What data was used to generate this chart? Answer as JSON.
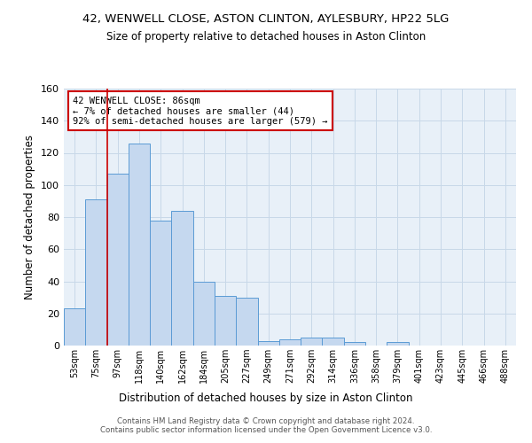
{
  "title_line1": "42, WENWELL CLOSE, ASTON CLINTON, AYLESBURY, HP22 5LG",
  "title_line2": "Size of property relative to detached houses in Aston Clinton",
  "xlabel": "Distribution of detached houses by size in Aston Clinton",
  "ylabel": "Number of detached properties",
  "bar_labels": [
    "53sqm",
    "75sqm",
    "97sqm",
    "118sqm",
    "140sqm",
    "162sqm",
    "184sqm",
    "205sqm",
    "227sqm",
    "249sqm",
    "271sqm",
    "292sqm",
    "314sqm",
    "336sqm",
    "358sqm",
    "379sqm",
    "401sqm",
    "423sqm",
    "445sqm",
    "466sqm",
    "488sqm"
  ],
  "bar_heights": [
    23,
    91,
    107,
    126,
    78,
    84,
    40,
    31,
    30,
    3,
    4,
    5,
    5,
    2,
    0,
    2,
    0,
    0,
    0,
    0,
    0
  ],
  "bar_color": "#c5d8ef",
  "bar_edge_color": "#5b9bd5",
  "annotation_text": "42 WENWELL CLOSE: 86sqm\n← 7% of detached houses are smaller (44)\n92% of semi-detached houses are larger (579) →",
  "annotation_box_color": "#ffffff",
  "annotation_box_edge": "#cc0000",
  "ylim": [
    0,
    160
  ],
  "yticks": [
    0,
    20,
    40,
    60,
    80,
    100,
    120,
    140,
    160
  ],
  "footnote": "Contains HM Land Registry data © Crown copyright and database right 2024.\nContains public sector information licensed under the Open Government Licence v3.0.",
  "grid_color": "#c8d8e8",
  "background_color": "#e8f0f8"
}
